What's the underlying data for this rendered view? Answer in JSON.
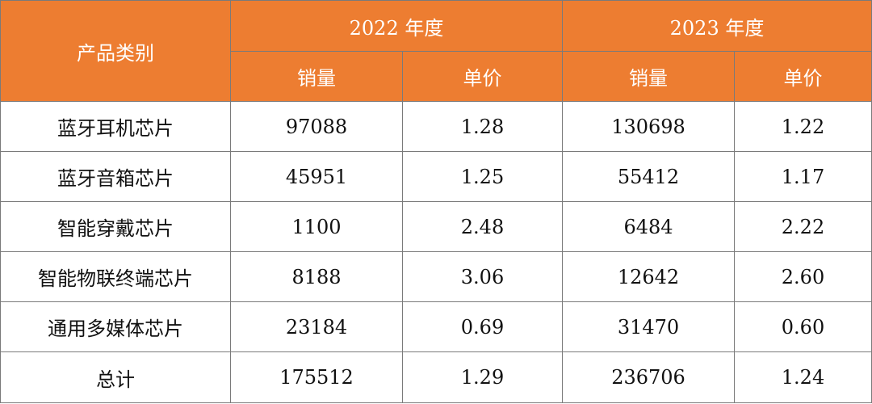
{
  "table": {
    "header": {
      "category": "产品类别",
      "year_2022": "2022 年度",
      "year_2023": "2023 年度",
      "sales_2022": "销量",
      "price_2022": "单价",
      "sales_2023": "销量",
      "price_2023": "单价"
    },
    "rows": [
      {
        "category": "蓝牙耳机芯片",
        "sales_2022": "97088",
        "price_2022": "1.28",
        "sales_2023": "130698",
        "price_2023": "1.22"
      },
      {
        "category": "蓝牙音箱芯片",
        "sales_2022": "45951",
        "price_2022": "1.25",
        "sales_2023": "55412",
        "price_2023": "1.17"
      },
      {
        "category": "智能穿戴芯片",
        "sales_2022": "1100",
        "price_2022": "2.48",
        "sales_2023": "6484",
        "price_2023": "2.22"
      },
      {
        "category": "智能物联终端芯片",
        "sales_2022": "8188",
        "price_2022": "3.06",
        "sales_2023": "12642",
        "price_2023": "2.60"
      },
      {
        "category": "通用多媒体芯片",
        "sales_2022": "23184",
        "price_2022": "0.69",
        "sales_2023": "31470",
        "price_2023": "0.60"
      }
    ],
    "total": {
      "category": "总计",
      "sales_2022": "175512",
      "price_2022": "1.29",
      "sales_2023": "236706",
      "price_2023": "1.24"
    }
  },
  "colors": {
    "header_bg": "#ed7d31",
    "header_text": "#ffffff",
    "border": "#7a7a7a"
  }
}
